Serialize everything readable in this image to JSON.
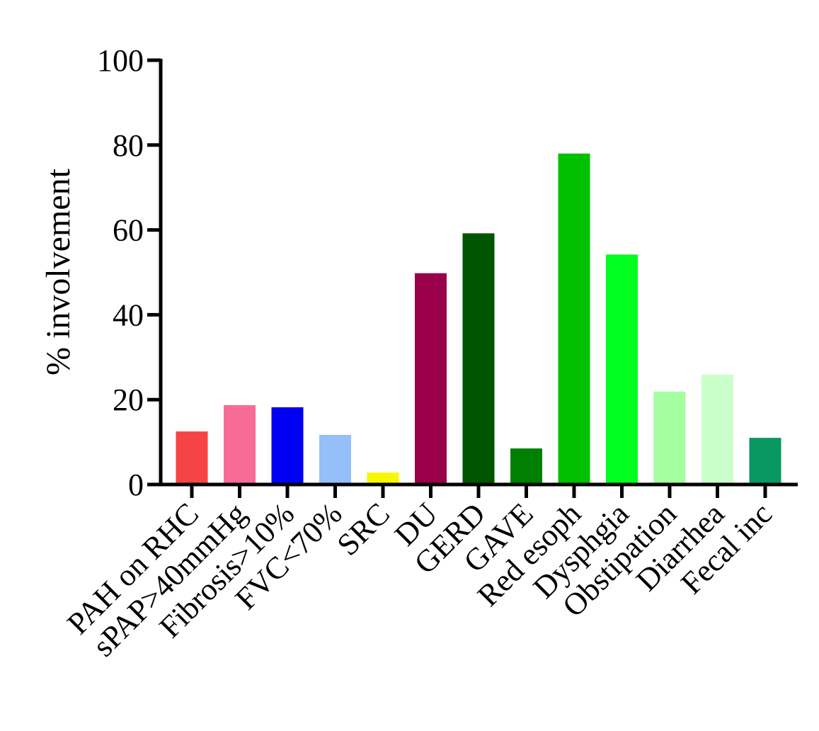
{
  "chart_data": {
    "type": "bar",
    "title": "",
    "xlabel": "",
    "ylabel": "% involvement",
    "ylim": [
      0,
      100
    ],
    "yticks": [
      0,
      20,
      40,
      60,
      80,
      100
    ],
    "grid": false,
    "legend": "none",
    "categories": [
      "PAH on RHC",
      "sPAP>40mmHg",
      "Fibrosis>10%",
      "FVC<70%",
      "SRC",
      "DU",
      "GERD",
      "GAVE",
      "Red esoph",
      "Dysphgia",
      "Obstipation",
      "Diarrhea",
      "Fecal inc"
    ],
    "values": [
      12.5,
      18.7,
      18.2,
      11.7,
      2.8,
      49.8,
      59.2,
      8.5,
      78.0,
      54.2,
      21.9,
      25.9,
      11.0
    ],
    "colors": [
      "#f64343",
      "#f76c97",
      "#0000f5",
      "#94bff8",
      "#f7f700",
      "#990049",
      "#005500",
      "#008000",
      "#00c000",
      "#00ff1e",
      "#a3ff9f",
      "#cbffc9",
      "#099861"
    ]
  }
}
